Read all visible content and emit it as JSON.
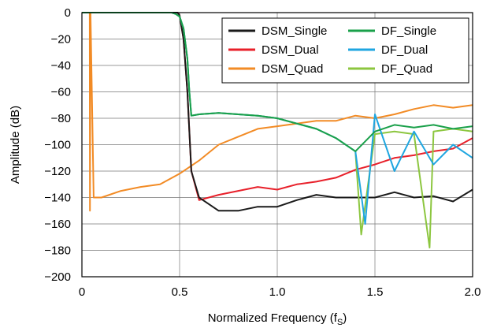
{
  "chart_data": {
    "type": "line",
    "title": "",
    "xlabel": "Normalized Frequency (f",
    "xlabel_sub": "S",
    "xlabel_close": ")",
    "ylabel": "Amplitude (dB)",
    "xlim": [
      0,
      2.0
    ],
    "ylim": [
      -200,
      0
    ],
    "xticks": [
      0,
      0.5,
      1.0,
      1.5,
      2.0
    ],
    "xtick_labels": [
      "0",
      "0.5",
      "1.0",
      "1.5",
      "2.0"
    ],
    "yticks": [
      0,
      -20,
      -40,
      -60,
      -80,
      -100,
      -120,
      -140,
      -160,
      -180,
      -200
    ],
    "ytick_labels": [
      "0",
      "−20",
      "−40",
      "−60",
      "−80",
      "−100",
      "−120",
      "−140",
      "−160",
      "−180",
      "−200"
    ],
    "grid": true,
    "legend_position": "top-right",
    "series": [
      {
        "name": "DSM_Single",
        "color": "#1a1a1a",
        "x": [
          0,
          0.49,
          0.5,
          0.52,
          0.54,
          0.56,
          0.6,
          0.7,
          0.8,
          0.9,
          1.0,
          1.1,
          1.2,
          1.3,
          1.4,
          1.5,
          1.6,
          1.7,
          1.8,
          1.9,
          2.0
        ],
        "y": [
          0,
          0,
          -2,
          -20,
          -60,
          -120,
          -140,
          -150,
          -150,
          -147,
          -147,
          -142,
          -138,
          -140,
          -140,
          -140,
          -136,
          -140,
          -139,
          -143,
          -134
        ]
      },
      {
        "name": "DSM_Dual",
        "color": "#e8202a",
        "x": [
          0,
          0.49,
          0.5,
          0.52,
          0.54,
          0.56,
          0.6,
          0.7,
          0.8,
          0.9,
          1.0,
          1.1,
          1.2,
          1.3,
          1.4,
          1.5,
          1.6,
          1.7,
          1.8,
          1.9,
          2.0
        ],
        "y": [
          0,
          0,
          -2,
          -20,
          -60,
          -120,
          -142,
          -138,
          -135,
          -132,
          -134,
          -130,
          -128,
          -125,
          -119,
          -115,
          -110,
          -108,
          -105,
          -103,
          -95
        ]
      },
      {
        "name": "DSM_Quad",
        "color": "#f28b25",
        "x": [
          0,
          0.02,
          0.04,
          0.041,
          0.044,
          0.06,
          0.1,
          0.2,
          0.3,
          0.4,
          0.5,
          0.6,
          0.7,
          0.8,
          0.9,
          1.0,
          1.1,
          1.2,
          1.3,
          1.4,
          1.5,
          1.6,
          1.7,
          1.8,
          1.9,
          2.0
        ],
        "y": [
          0,
          0,
          0,
          -150,
          0,
          -140,
          -140,
          -135,
          -132,
          -130,
          -122,
          -112,
          -100,
          -94,
          -88,
          -86,
          -84,
          -82,
          -82,
          -78,
          -80,
          -77,
          -73,
          -70,
          -72,
          -70
        ]
      },
      {
        "name": "DF_Single",
        "color": "#1aa04a",
        "x": [
          0,
          0.46,
          0.48,
          0.5,
          0.52,
          0.54,
          0.55,
          0.56,
          0.6,
          0.7,
          0.8,
          0.9,
          1.0,
          1.1,
          1.2,
          1.3,
          1.4,
          1.5,
          1.6,
          1.7,
          1.8,
          1.9,
          2.0
        ],
        "y": [
          0,
          0,
          -1,
          -3,
          -12,
          -35,
          -60,
          -78,
          -77,
          -76,
          -77,
          -78,
          -80,
          -84,
          -88,
          -95,
          -105,
          -90,
          -85,
          -87,
          -85,
          -88,
          -86
        ]
      },
      {
        "name": "DF_Dual",
        "color": "#1fa6e0",
        "x": [
          0,
          0.46,
          0.48,
          0.5,
          0.52,
          0.54,
          0.55,
          0.56,
          0.6,
          0.7,
          0.8,
          0.9,
          1.0,
          1.1,
          1.2,
          1.3,
          1.4,
          1.45,
          1.5,
          1.6,
          1.7,
          1.8,
          1.9,
          2.0
        ],
        "y": [
          0,
          0,
          -1,
          -3,
          -12,
          -35,
          -60,
          -78,
          -77,
          -76,
          -77,
          -78,
          -80,
          -84,
          -88,
          -95,
          -105,
          -160,
          -77,
          -120,
          -90,
          -115,
          -100,
          -110
        ]
      },
      {
        "name": "DF_Quad",
        "color": "#8cc63f",
        "x": [
          0,
          0.46,
          0.48,
          0.5,
          0.52,
          0.54,
          0.55,
          0.56,
          0.6,
          0.7,
          0.8,
          0.9,
          1.0,
          1.1,
          1.2,
          1.3,
          1.4,
          1.43,
          1.5,
          1.6,
          1.7,
          1.78,
          1.8,
          1.9,
          2.0
        ],
        "y": [
          0,
          0,
          -1,
          -3,
          -12,
          -35,
          -60,
          -78,
          -77,
          -76,
          -77,
          -78,
          -80,
          -84,
          -88,
          -95,
          -105,
          -168,
          -92,
          -90,
          -92,
          -178,
          -90,
          -88,
          -90
        ]
      }
    ]
  }
}
